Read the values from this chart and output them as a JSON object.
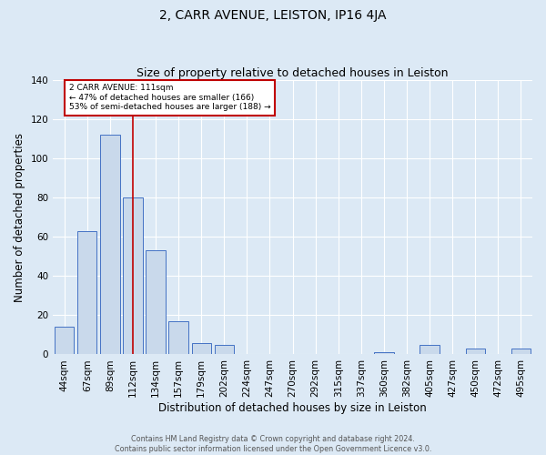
{
  "title": "2, CARR AVENUE, LEISTON, IP16 4JA",
  "subtitle": "Size of property relative to detached houses in Leiston",
  "xlabel": "Distribution of detached houses by size in Leiston",
  "ylabel": "Number of detached properties",
  "bar_labels": [
    "44sqm",
    "67sqm",
    "89sqm",
    "112sqm",
    "134sqm",
    "157sqm",
    "179sqm",
    "202sqm",
    "224sqm",
    "247sqm",
    "270sqm",
    "292sqm",
    "315sqm",
    "337sqm",
    "360sqm",
    "382sqm",
    "405sqm",
    "427sqm",
    "450sqm",
    "472sqm",
    "495sqm"
  ],
  "bar_values": [
    14,
    63,
    112,
    80,
    53,
    17,
    6,
    5,
    0,
    0,
    0,
    0,
    0,
    0,
    1,
    0,
    5,
    0,
    3,
    0,
    3
  ],
  "bar_color": "#c9d9eb",
  "bar_edge_color": "#4472c4",
  "background_color": "#dce9f5",
  "grid_color": "#ffffff",
  "vline_x_index": 3,
  "vline_color": "#c00000",
  "annotation_text_line1": "2 CARR AVENUE: 111sqm",
  "annotation_text_line2": "← 47% of detached houses are smaller (166)",
  "annotation_text_line3": "53% of semi-detached houses are larger (188) →",
  "annotation_box_color": "#ffffff",
  "annotation_border_color": "#c00000",
  "ylim": [
    0,
    140
  ],
  "yticks": [
    0,
    20,
    40,
    60,
    80,
    100,
    120,
    140
  ],
  "footer_line1": "Contains HM Land Registry data © Crown copyright and database right 2024.",
  "footer_line2": "Contains public sector information licensed under the Open Government Licence v3.0."
}
